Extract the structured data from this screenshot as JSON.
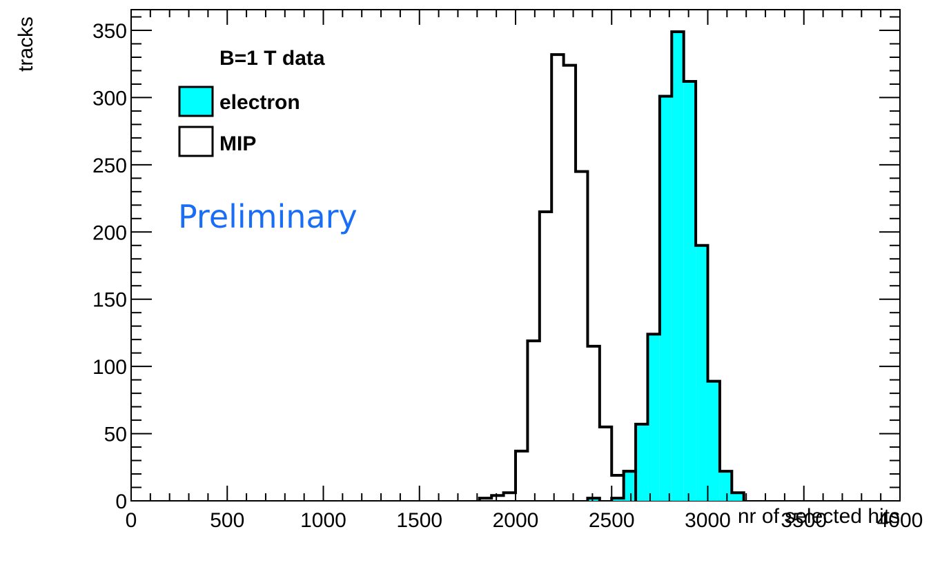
{
  "chart_data": {
    "type": "histogram",
    "xlabel": "nr of selected hits",
    "ylabel": "tracks",
    "xlim": [
      0,
      4000
    ],
    "ylim": [
      0,
      360
    ],
    "bin_width": 62.5,
    "x_ticks": [
      "0",
      "500",
      "1000",
      "1500",
      "2000",
      "2500",
      "3000",
      "3500",
      "4000"
    ],
    "y_ticks": [
      "0",
      "50",
      "100",
      "150",
      "200",
      "250",
      "300",
      "350"
    ],
    "legend": {
      "header": "B=1 T data",
      "placement": "top-left",
      "entries": [
        "electron",
        "MIP"
      ]
    },
    "annotation": "Preliminary",
    "series": [
      {
        "name": "electron",
        "fill": "#00ffff",
        "bins": [
          {
            "x": 2375,
            "y": 2
          },
          {
            "x": 2500,
            "y": 2
          },
          {
            "x": 2562.5,
            "y": 22
          },
          {
            "x": 2625,
            "y": 57
          },
          {
            "x": 2687.5,
            "y": 124
          },
          {
            "x": 2750,
            "y": 301
          },
          {
            "x": 2812.5,
            "y": 349
          },
          {
            "x": 2875,
            "y": 312
          },
          {
            "x": 2937.5,
            "y": 190
          },
          {
            "x": 3000,
            "y": 89
          },
          {
            "x": 3062.5,
            "y": 22
          },
          {
            "x": 3125,
            "y": 6
          }
        ]
      },
      {
        "name": "MIP",
        "fill": "none",
        "bins": [
          {
            "x": 1812.5,
            "y": 2
          },
          {
            "x": 1875,
            "y": 4
          },
          {
            "x": 1937.5,
            "y": 6
          },
          {
            "x": 2000,
            "y": 37
          },
          {
            "x": 2062.5,
            "y": 119
          },
          {
            "x": 2125,
            "y": 215
          },
          {
            "x": 2187.5,
            "y": 332
          },
          {
            "x": 2250,
            "y": 324
          },
          {
            "x": 2312.5,
            "y": 245
          },
          {
            "x": 2375,
            "y": 115
          },
          {
            "x": 2437.5,
            "y": 55
          },
          {
            "x": 2500,
            "y": 19
          },
          {
            "x": 2562.5,
            "y": 22
          }
        ]
      }
    ],
    "colors": {
      "electron_fill": "#00ffff",
      "annotation": "#1a6ef5",
      "line": "#000000"
    }
  }
}
